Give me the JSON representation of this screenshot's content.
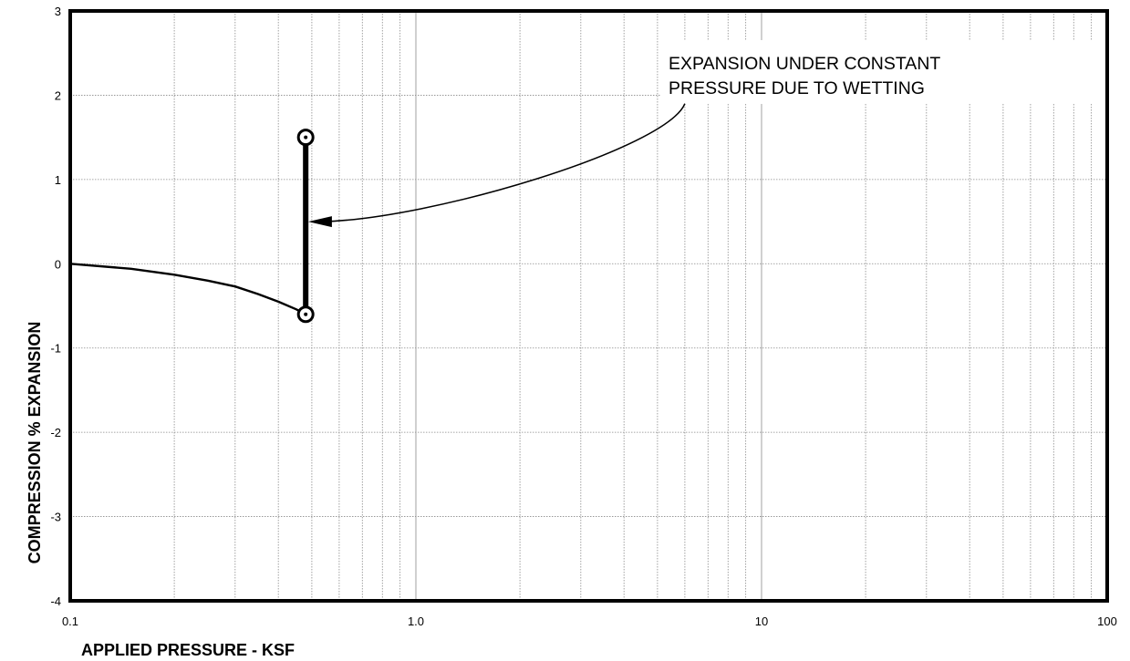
{
  "chart_data": {
    "type": "line",
    "xlabel": "APPLIED PRESSURE - KSF",
    "ylabel": "COMPRESSION % EXPANSION",
    "x_scale": "log",
    "xlim": [
      0.1,
      100
    ],
    "ylim": [
      -4,
      3
    ],
    "x_tick_labels": [
      "0.1",
      "1.0",
      "10",
      "100"
    ],
    "x_tick_values": [
      0.1,
      1,
      10,
      100
    ],
    "y_ticks": [
      3,
      2,
      1,
      0,
      -1,
      -2,
      -3,
      -4
    ],
    "grid": true,
    "series": [
      {
        "style": "loading-curve",
        "points": [
          [
            0.1,
            0
          ],
          [
            0.15,
            -0.06
          ],
          [
            0.2,
            -0.13
          ],
          [
            0.25,
            -0.2
          ],
          [
            0.3,
            -0.27
          ],
          [
            0.35,
            -0.36
          ],
          [
            0.4,
            -0.45
          ],
          [
            0.45,
            -0.54
          ],
          [
            0.48,
            -0.6
          ]
        ]
      },
      {
        "style": "expansion-on-wetting",
        "points": [
          [
            0.48,
            -0.6
          ],
          [
            0.48,
            1.5
          ]
        ]
      }
    ],
    "markers": [
      [
        0.48,
        1.5
      ],
      [
        0.48,
        -0.6
      ]
    ],
    "annotation": {
      "lines": [
        "EXPANSION UNDER CONSTANT",
        "PRESSURE DUE TO WETTING"
      ],
      "arrow_from": [
        6.0,
        1.9
      ],
      "arrow_to": [
        0.5,
        0.5
      ]
    }
  }
}
